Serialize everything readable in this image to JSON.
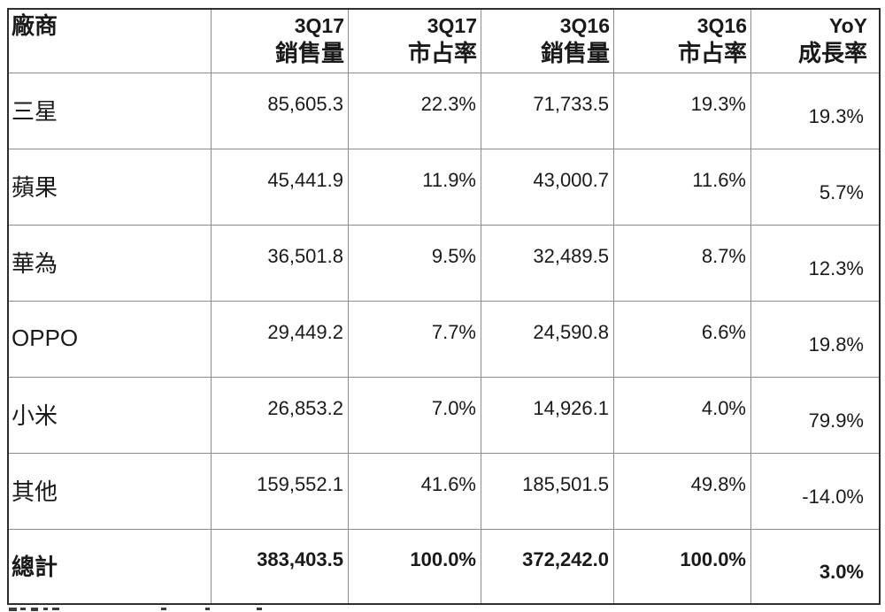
{
  "colors": {
    "background": "#ffffff",
    "text": "#1a1a1a",
    "border_outer": "#2e2e2e",
    "border_inner": "#8c8c8c"
  },
  "table": {
    "header": {
      "vendor": "廠商",
      "cols": [
        {
          "line1": "3Q17",
          "line2": "銷售量"
        },
        {
          "line1": "3Q17",
          "line2": "市占率"
        },
        {
          "line1": "3Q16",
          "line2": "銷售量"
        },
        {
          "line1": "3Q16",
          "line2": "市占率"
        },
        {
          "line1": "YoY",
          "line2": "成長率"
        }
      ]
    },
    "rows": [
      {
        "vendor": "三星",
        "q17_units": "85,605.3",
        "q17_share": "22.3%",
        "q16_units": "71,733.5",
        "q16_share": "19.3%",
        "yoy": "19.3%"
      },
      {
        "vendor": "蘋果",
        "q17_units": "45,441.9",
        "q17_share": "11.9%",
        "q16_units": "43,000.7",
        "q16_share": "11.6%",
        "yoy": "5.7%"
      },
      {
        "vendor": "華為",
        "q17_units": "36,501.8",
        "q17_share": "9.5%",
        "q16_units": "32,489.5",
        "q16_share": "8.7%",
        "yoy": "12.3%"
      },
      {
        "vendor": "OPPO",
        "q17_units": "29,449.2",
        "q17_share": "7.7%",
        "q16_units": "24,590.8",
        "q16_share": "6.6%",
        "yoy": "19.8%"
      },
      {
        "vendor": "小米",
        "q17_units": "26,853.2",
        "q17_share": "7.0%",
        "q16_units": "14,926.1",
        "q16_share": "4.0%",
        "yoy": "79.9%"
      },
      {
        "vendor": "其他",
        "q17_units": "159,552.1",
        "q17_share": "41.6%",
        "q16_units": "185,501.5",
        "q16_share": "49.8%",
        "yoy": "-14.0%"
      }
    ],
    "total": {
      "vendor": "總計",
      "q17_units": "383,403.5",
      "q17_share": "100.0%",
      "q16_units": "372,242.0",
      "q16_share": "100.0%",
      "yoy": "3.0%"
    }
  },
  "chart_data": {
    "type": "table",
    "title": "",
    "columns": [
      "廠商",
      "3Q17 銷售量",
      "3Q17 市占率",
      "3Q16 銷售量",
      "3Q16 市占率",
      "YoY 成長率"
    ],
    "rows": [
      [
        "三星",
        85605.3,
        "22.3%",
        71733.5,
        "19.3%",
        "19.3%"
      ],
      [
        "蘋果",
        45441.9,
        "11.9%",
        43000.7,
        "11.6%",
        "5.7%"
      ],
      [
        "華為",
        36501.8,
        "9.5%",
        32489.5,
        "8.7%",
        "12.3%"
      ],
      [
        "OPPO",
        29449.2,
        "7.7%",
        24590.8,
        "6.6%",
        "19.8%"
      ],
      [
        "小米",
        26853.2,
        "7.0%",
        14926.1,
        "4.0%",
        "79.9%"
      ],
      [
        "其他",
        159552.1,
        "41.6%",
        185501.5,
        "49.8%",
        "-14.0%"
      ],
      [
        "總計",
        383403.5,
        "100.0%",
        372242.0,
        "100.0%",
        "3.0%"
      ]
    ]
  }
}
